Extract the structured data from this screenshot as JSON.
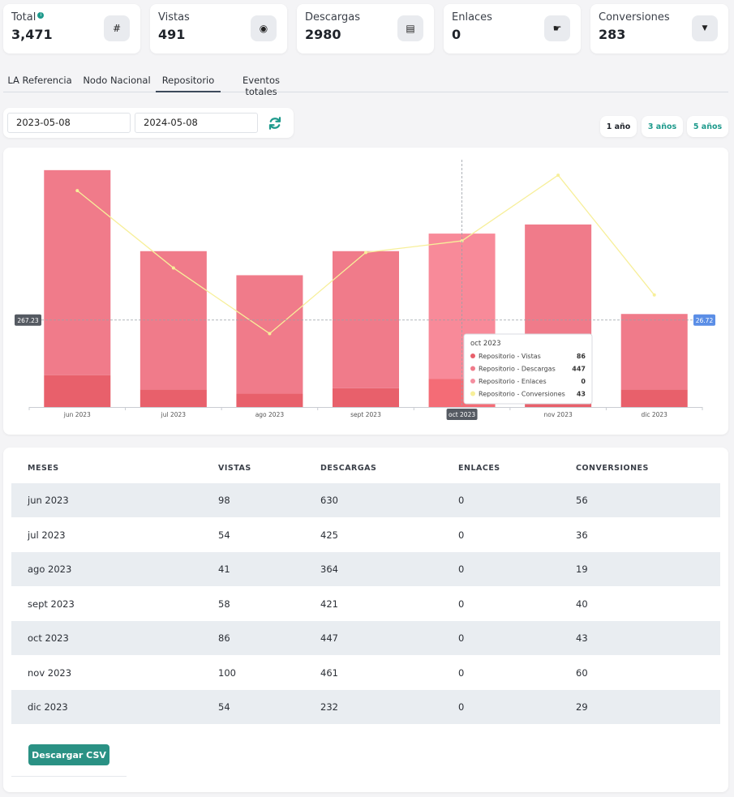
{
  "stats": [
    {
      "label": "Total",
      "value": "3,471",
      "icon": "hash-icon",
      "glyph": "#",
      "info": true
    },
    {
      "label": "Vistas",
      "value": "491",
      "icon": "eye-icon",
      "glyph": "◉"
    },
    {
      "label": "Descargas",
      "value": "2980",
      "icon": "file-download-icon",
      "glyph": "▤"
    },
    {
      "label": "Enlaces",
      "value": "0",
      "icon": "pointer-hand-icon",
      "glyph": "☛"
    },
    {
      "label": "Conversiones",
      "value": "283",
      "icon": "filter-icon",
      "glyph": "▼"
    }
  ],
  "tabs": [
    {
      "label": "LA Referencia",
      "active": false
    },
    {
      "label": "Nodo Nacional",
      "active": false
    },
    {
      "label": "Repositorio",
      "active": true
    },
    {
      "label": "Eventos totales",
      "active": false
    }
  ],
  "date_range": {
    "from": "2023-05-08",
    "to": "2024-05-08"
  },
  "range_buttons": [
    {
      "label": "1 año",
      "active": true
    },
    {
      "label": "3 años",
      "active": false
    },
    {
      "label": "5 años",
      "active": false
    }
  ],
  "chart_data": {
    "type": "bar",
    "categories": [
      "jun 2023",
      "jul 2023",
      "ago 2023",
      "sept 2023",
      "oct 2023",
      "nov 2023",
      "dic 2023"
    ],
    "series": [
      {
        "name": "Repositorio - Vistas",
        "type": "bar",
        "values": [
          98,
          54,
          41,
          58,
          86,
          100,
          54
        ],
        "color": "#e8606b"
      },
      {
        "name": "Repositorio - Descargas",
        "type": "bar",
        "values": [
          630,
          425,
          364,
          421,
          447,
          461,
          232
        ],
        "color": "#f07b8a"
      },
      {
        "name": "Repositorio - Enlaces",
        "type": "bar",
        "values": [
          0,
          0,
          0,
          0,
          0,
          0,
          0
        ],
        "color": "#f48fa0"
      },
      {
        "name": "Repositorio - Conversiones",
        "type": "line",
        "values": [
          56,
          36,
          19,
          40,
          43,
          60,
          29
        ],
        "color": "#f7ef9a"
      }
    ],
    "stacked": true,
    "ylim": [
      0,
      760
    ],
    "y2lim": [
      0,
      64
    ],
    "crosshair": {
      "category": "oct 2023",
      "left_value": "267.23",
      "right_value": "26.72"
    },
    "tooltip": {
      "title": "oct 2023",
      "rows": [
        {
          "name": "Repositorio - Vistas",
          "value": "86",
          "color": "#e8606b"
        },
        {
          "name": "Repositorio - Descargas",
          "value": "447",
          "color": "#f07b8a"
        },
        {
          "name": "Repositorio - Enlaces",
          "value": "0",
          "color": "#f48fa0"
        },
        {
          "name": "Repositorio - Conversiones",
          "value": "43",
          "color": "#f7ef9a"
        }
      ]
    }
  },
  "table": {
    "headers": [
      "MESES",
      "VISTAS",
      "DESCARGAS",
      "ENLACES",
      "CONVERSIONES"
    ],
    "rows": [
      [
        "jun 2023",
        "98",
        "630",
        "0",
        "56"
      ],
      [
        "jul 2023",
        "54",
        "425",
        "0",
        "36"
      ],
      [
        "ago 2023",
        "41",
        "364",
        "0",
        "19"
      ],
      [
        "sept 2023",
        "58",
        "421",
        "0",
        "40"
      ],
      [
        "oct 2023",
        "86",
        "447",
        "0",
        "43"
      ],
      [
        "nov 2023",
        "100",
        "461",
        "0",
        "60"
      ],
      [
        "dic 2023",
        "54",
        "232",
        "0",
        "29"
      ]
    ],
    "download_label": "Descargar CSV"
  }
}
